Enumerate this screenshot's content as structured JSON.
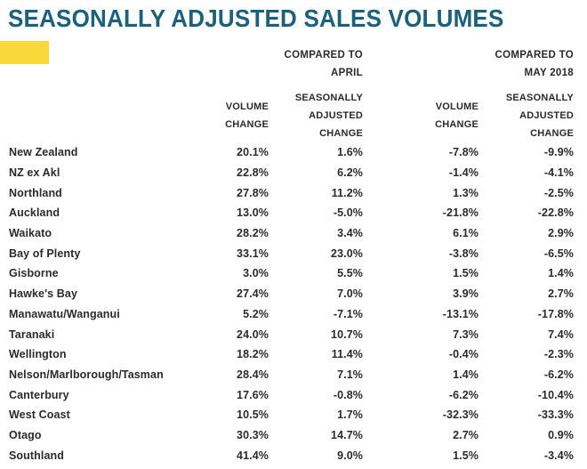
{
  "title": "SEASONALLY ADJUSTED SALES VOLUMES",
  "colors": {
    "title_teal": "#1a617f",
    "highlight_yellow": "#f9d83b",
    "text": "#2b2b2b"
  },
  "table": {
    "group_headers": [
      {
        "line1": "COMPARED TO",
        "line2": "APRIL"
      },
      {
        "line1": "COMPARED TO",
        "line2": "MAY 2018"
      }
    ],
    "col_headers": [
      {
        "lines": [
          "VOLUME",
          "CHANGE"
        ]
      },
      {
        "lines": [
          "SEASONALLY",
          "ADJUSTED",
          "CHANGE"
        ]
      },
      {
        "lines": [
          "VOLUME",
          "CHANGE"
        ]
      },
      {
        "lines": [
          "SEASONALLY",
          "ADJUSTED",
          "CHANGE"
        ]
      }
    ],
    "rows": [
      {
        "region": "New Zealand",
        "values": [
          "20.1%",
          "1.6%",
          "-7.8%",
          "-9.9%"
        ]
      },
      {
        "region": "NZ ex Akl",
        "values": [
          "22.8%",
          "6.2%",
          "-1.4%",
          "-4.1%"
        ]
      },
      {
        "region": "Northland",
        "values": [
          "27.8%",
          "11.2%",
          "1.3%",
          "-2.5%"
        ]
      },
      {
        "region": "Auckland",
        "values": [
          "13.0%",
          "-5.0%",
          "-21.8%",
          "-22.8%"
        ]
      },
      {
        "region": "Waikato",
        "values": [
          "28.2%",
          "3.4%",
          "6.1%",
          "2.9%"
        ]
      },
      {
        "region": "Bay of Plenty",
        "values": [
          "33.1%",
          "23.0%",
          "-3.8%",
          "-6.5%"
        ]
      },
      {
        "region": "Gisborne",
        "values": [
          "3.0%",
          "5.5%",
          "1.5%",
          "1.4%"
        ]
      },
      {
        "region": "Hawke's Bay",
        "values": [
          "27.4%",
          "7.0%",
          "3.9%",
          "2.7%"
        ]
      },
      {
        "region": "Manawatu/Wanganui",
        "values": [
          "5.2%",
          "-7.1%",
          "-13.1%",
          "-17.8%"
        ]
      },
      {
        "region": "Taranaki",
        "values": [
          "24.0%",
          "10.7%",
          "7.3%",
          "7.4%"
        ]
      },
      {
        "region": "Wellington",
        "values": [
          "18.2%",
          "11.4%",
          "-0.4%",
          "-2.3%"
        ]
      },
      {
        "region": "Nelson/Marlborough/Tasman",
        "values": [
          "28.4%",
          "7.1%",
          "1.4%",
          "-6.2%"
        ]
      },
      {
        "region": "Canterbury",
        "values": [
          "17.6%",
          "-0.8%",
          "-6.2%",
          "-10.4%"
        ]
      },
      {
        "region": "West Coast",
        "values": [
          "10.5%",
          "1.7%",
          "-32.3%",
          "-33.3%"
        ]
      },
      {
        "region": "Otago",
        "values": [
          "30.3%",
          "14.7%",
          "2.7%",
          "0.9%"
        ]
      },
      {
        "region": "Southland",
        "values": [
          "41.4%",
          "9.0%",
          "1.5%",
          "-3.4%"
        ]
      }
    ]
  }
}
